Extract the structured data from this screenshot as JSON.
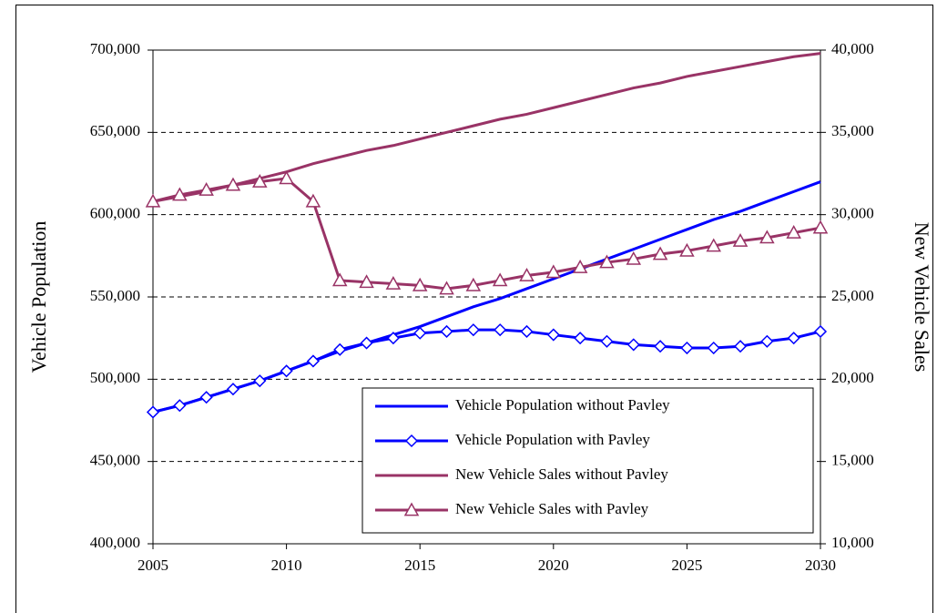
{
  "chart_data": {
    "type": "line",
    "x": [
      2005,
      2006,
      2007,
      2008,
      2009,
      2010,
      2011,
      2012,
      2013,
      2014,
      2015,
      2016,
      2017,
      2018,
      2019,
      2020,
      2021,
      2022,
      2023,
      2024,
      2025,
      2026,
      2027,
      2028,
      2029,
      2030
    ],
    "xlim": [
      2005,
      2030
    ],
    "xticks": [
      2005,
      2010,
      2015,
      2020,
      2025,
      2030
    ],
    "y_label": "Vehicle Population",
    "y2_label": "New Vehicle Sales",
    "ylim": [
      400000,
      700000
    ],
    "yticks": [
      {
        "value": 400000,
        "label": "400,000"
      },
      {
        "value": 450000,
        "label": "450,000"
      },
      {
        "value": 500000,
        "label": "500,000"
      },
      {
        "value": 550000,
        "label": "550,000"
      },
      {
        "value": 600000,
        "label": "600,000"
      },
      {
        "value": 650000,
        "label": "650,000"
      },
      {
        "value": 700000,
        "label": "700,000"
      }
    ],
    "y2lim": [
      10000,
      40000
    ],
    "y2ticks": [
      {
        "value": 10000,
        "label": "10,000"
      },
      {
        "value": 15000,
        "label": "15,000"
      },
      {
        "value": 20000,
        "label": "20,000"
      },
      {
        "value": 25000,
        "label": "25,000"
      },
      {
        "value": 30000,
        "label": "30,000"
      },
      {
        "value": 35000,
        "label": "35,000"
      },
      {
        "value": 40000,
        "label": "40,000"
      }
    ],
    "grid": true,
    "legend": "lower right",
    "series": [
      {
        "name": "Vehicle Population without Pavley",
        "color": "#0000ff",
        "axis": "y",
        "values": [
          480000,
          484000,
          489000,
          494000,
          499000,
          505000,
          511000,
          517000,
          522000,
          527000,
          532000,
          538000,
          544000,
          549000,
          555000,
          561000,
          567000,
          573000,
          579000,
          585000,
          591000,
          597000,
          602000,
          608000,
          614000,
          620000
        ]
      },
      {
        "name": "Vehicle Population with Pavley",
        "color": "#0000ff",
        "axis": "y",
        "marker": "diamond",
        "values": [
          480000,
          484000,
          489000,
          494000,
          499000,
          505000,
          511000,
          518000,
          522000,
          525000,
          528000,
          529000,
          530000,
          530000,
          529000,
          527000,
          525000,
          523000,
          521000,
          520000,
          519000,
          519000,
          520000,
          523000,
          525000,
          529000
        ]
      },
      {
        "name": "New Vehicle Sales without Pavley",
        "color": "#993366",
        "axis": "y2",
        "values": [
          30800,
          31100,
          31400,
          31800,
          32200,
          32600,
          33100,
          33500,
          33900,
          34200,
          34600,
          35000,
          35400,
          35800,
          36100,
          36500,
          36900,
          37300,
          37700,
          38000,
          38400,
          38700,
          39000,
          39300,
          39600,
          39800
        ]
      },
      {
        "name": "New Vehicle Sales with Pavley",
        "color": "#993366",
        "axis": "y2",
        "marker": "triangle",
        "values": [
          30800,
          31200,
          31500,
          31800,
          32000,
          32200,
          30800,
          26000,
          25900,
          25800,
          25700,
          25500,
          25700,
          26000,
          26300,
          26500,
          26800,
          27100,
          27300,
          27600,
          27800,
          28100,
          28400,
          28600,
          28900,
          29200
        ]
      }
    ]
  }
}
